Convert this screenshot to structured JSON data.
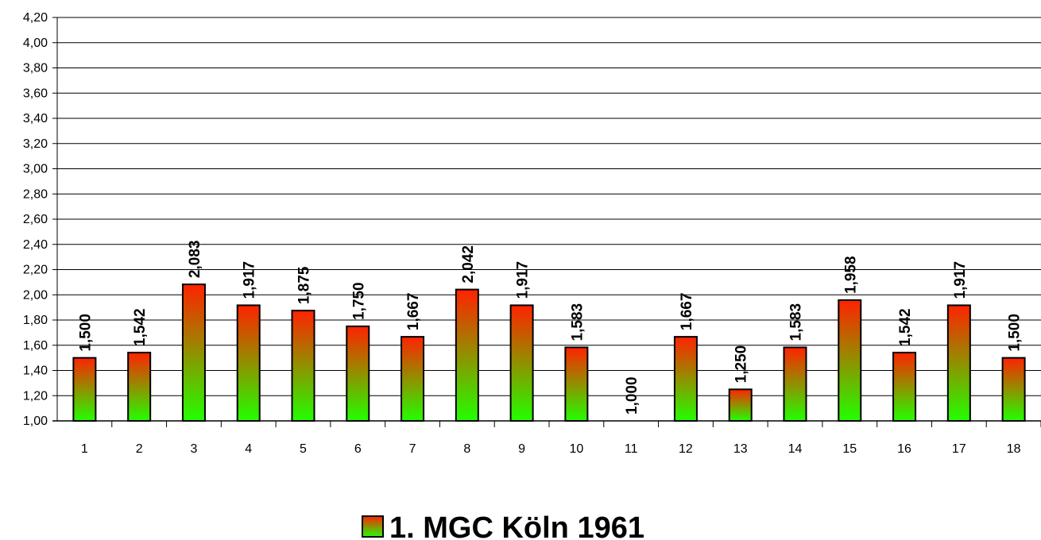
{
  "chart_data": {
    "type": "bar",
    "categories": [
      "1",
      "2",
      "3",
      "4",
      "5",
      "6",
      "7",
      "8",
      "9",
      "10",
      "11",
      "12",
      "13",
      "14",
      "15",
      "16",
      "17",
      "18"
    ],
    "series": [
      {
        "name": "1. MGC Köln 1961",
        "values": [
          1.5,
          1.542,
          2.083,
          1.917,
          1.875,
          1.75,
          1.667,
          2.042,
          1.917,
          1.583,
          1.0,
          1.667,
          1.25,
          1.583,
          1.958,
          1.542,
          1.917,
          1.5
        ]
      }
    ],
    "data_labels": [
      "1,500",
      "1,542",
      "2,083",
      "1,917",
      "1,875",
      "1,750",
      "1,667",
      "2,042",
      "1,917",
      "1,583",
      "1,000",
      "1,667",
      "1,250",
      "1,583",
      "1,958",
      "1,542",
      "1,917",
      "1,500"
    ],
    "y_ticks": [
      "1,00",
      "1,20",
      "1,40",
      "1,60",
      "1,80",
      "2,00",
      "2,20",
      "2,40",
      "2,60",
      "2,80",
      "3,00",
      "3,20",
      "3,40",
      "3,60",
      "3,80",
      "4,00",
      "4,20"
    ],
    "ylim": [
      1.0,
      4.2
    ],
    "ystep": 0.2,
    "grid": true,
    "legend_position": "bottom-center",
    "colors": {
      "bar_top": "#ff2200",
      "bar_bottom": "#22ff00",
      "bar_border": "#000000",
      "grid": "#000000"
    },
    "title": "",
    "xlabel": "",
    "ylabel": ""
  }
}
